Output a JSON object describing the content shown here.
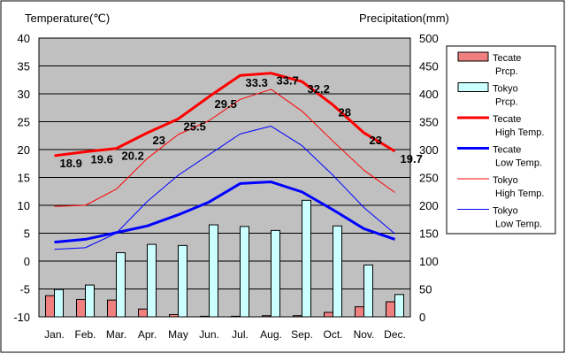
{
  "chart_data": {
    "type": "bar+line",
    "categories": [
      "Jan.",
      "Feb.",
      "Mar.",
      "Apr.",
      "May",
      "Jun.",
      "Jul.",
      "Aug.",
      "Sep.",
      "Oct.",
      "Nov.",
      "Dec."
    ],
    "left_axis": {
      "label": "Temperature(℃)",
      "ylim": [
        -10,
        40
      ],
      "ticks": [
        "-10",
        "-5",
        "0",
        "5",
        "10",
        "15",
        "20",
        "25",
        "30",
        "35",
        "40"
      ]
    },
    "right_axis": {
      "label": "Precipitation(mm)",
      "ylim": [
        0,
        500
      ],
      "ticks": [
        "0",
        "50",
        "100",
        "150",
        "200",
        "250",
        "300",
        "350",
        "400",
        "450",
        "500"
      ]
    },
    "grid": true,
    "legend_position": "right",
    "bar_series": [
      {
        "name": "Tecate Prcp.",
        "legend_lines": [
          "Tecate",
          "Prcp."
        ],
        "color": "#f08080",
        "values": [
          38,
          31,
          30,
          14,
          4,
          1,
          1,
          2,
          2,
          8,
          18,
          27
        ]
      },
      {
        "name": "Tokyo Prcp.",
        "legend_lines": [
          "Tokyo",
          "Prcp."
        ],
        "color": "#ccffff",
        "values": [
          49,
          57,
          115,
          130,
          128,
          165,
          162,
          155,
          209,
          163,
          93,
          40
        ]
      }
    ],
    "line_series": [
      {
        "name": "Tecate High Temp.",
        "legend_lines": [
          "Tecate",
          "High Temp."
        ],
        "color": "#ff0000",
        "width": 3,
        "values": [
          18.9,
          19.6,
          20.2,
          23,
          25.5,
          29.5,
          33.3,
          33.7,
          32.2,
          28,
          23,
          19.7
        ],
        "labels": [
          "18.9",
          "19.6",
          "20.2",
          "23",
          "25.5",
          "29.5",
          "33.3",
          "33.7",
          "32.2",
          "28",
          "23",
          "19.7"
        ]
      },
      {
        "name": "Tecate Low Temp.",
        "legend_lines": [
          "Tecate",
          "Low Temp."
        ],
        "color": "#0000ff",
        "width": 3,
        "values": [
          3.4,
          3.9,
          5.1,
          6.3,
          8.3,
          10.6,
          13.9,
          14.2,
          12.4,
          9.2,
          5.8,
          3.9
        ]
      },
      {
        "name": "Tokyo High Temp.",
        "legend_lines": [
          "Tokyo",
          "High Temp."
        ],
        "color": "#ff0000",
        "width": 1,
        "values": [
          9.8,
          10.0,
          12.9,
          18.4,
          22.7,
          25.2,
          29.0,
          30.8,
          26.9,
          21.5,
          16.3,
          12.3
        ]
      },
      {
        "name": "Tokyo Low Temp.",
        "legend_lines": [
          "Tokyo",
          "Low Temp."
        ],
        "color": "#0000ff",
        "width": 1,
        "values": [
          2.1,
          2.4,
          5.0,
          10.7,
          15.4,
          19.1,
          22.8,
          24.2,
          20.7,
          15.4,
          9.6,
          4.9
        ]
      }
    ]
  }
}
